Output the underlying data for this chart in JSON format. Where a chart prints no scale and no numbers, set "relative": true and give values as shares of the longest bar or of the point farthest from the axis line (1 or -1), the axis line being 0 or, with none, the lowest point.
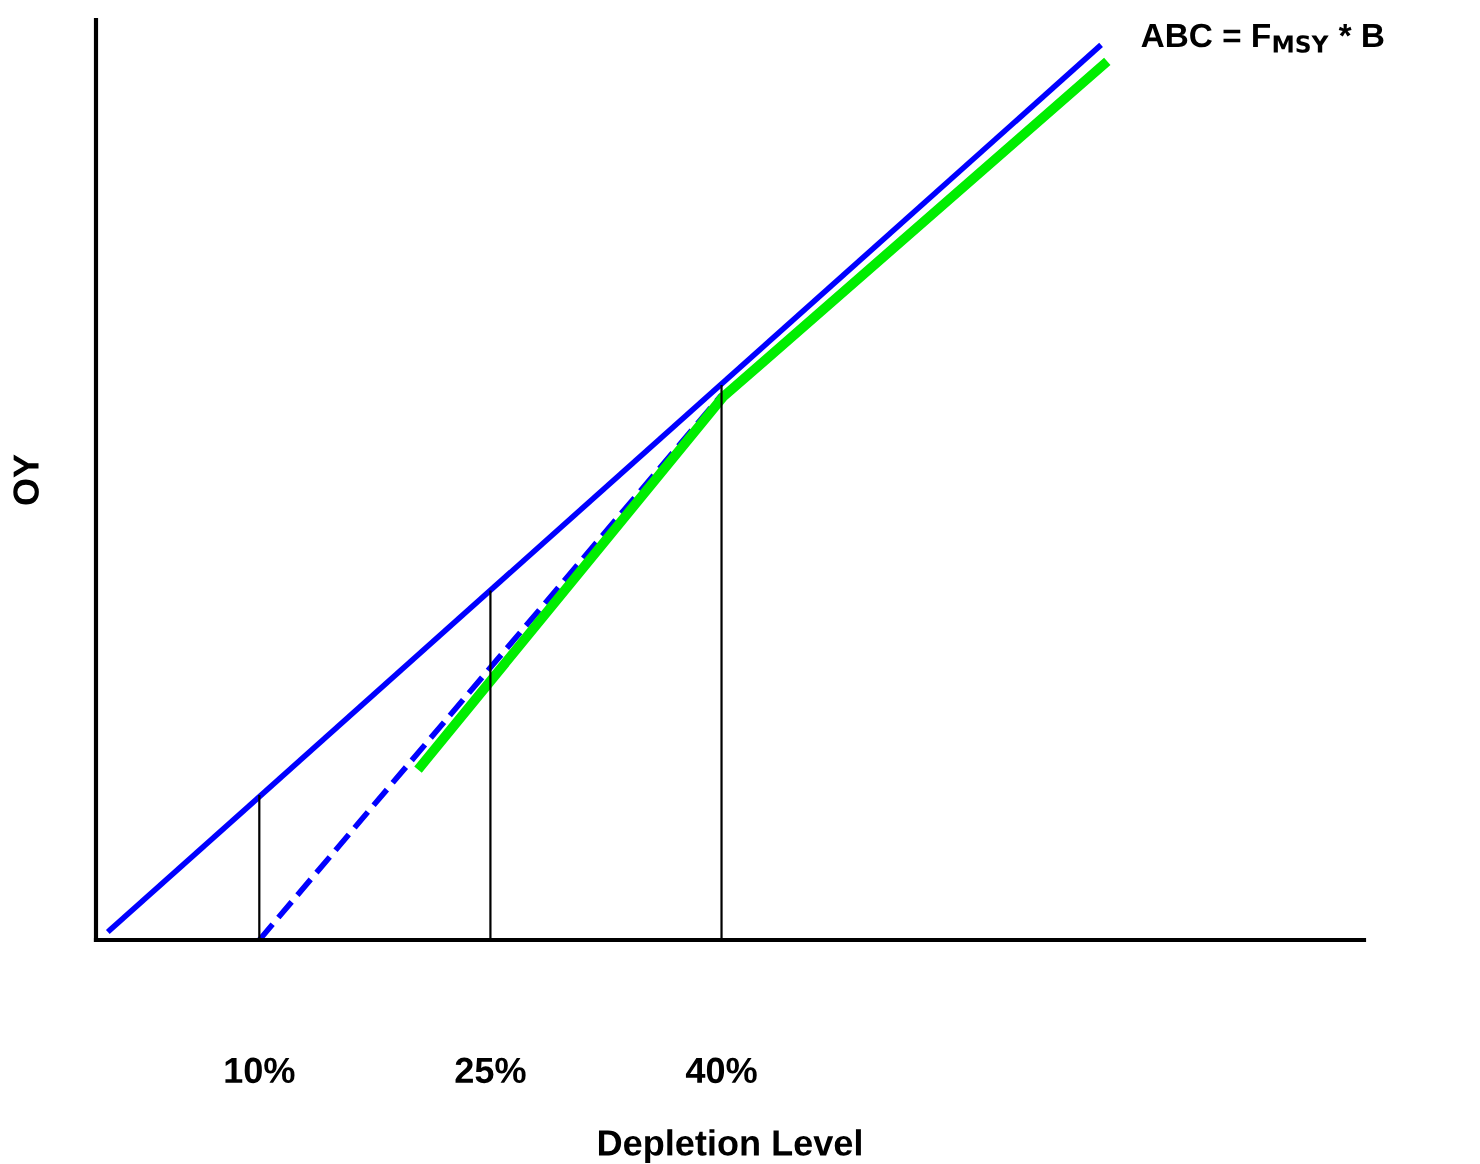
{
  "chart_data": {
    "type": "line",
    "relative": true,
    "xlabel": "Depletion Level",
    "ylabel": "OY",
    "xlim": [
      -0.6,
      81.7
    ],
    "xticks": [
      {
        "value": 10,
        "label": "10%"
      },
      {
        "value": 25,
        "label": "25%"
      },
      {
        "value": 40,
        "label": "40%"
      }
    ],
    "tick_labels": "x",
    "grid": false,
    "marker": "none",
    "series": [
      {
        "color": "#0000ff",
        "x": [
          0.3,
          64.5
        ],
        "values": [
          0.011,
          1
        ],
        "line_style": "solid"
      },
      {
        "color": "#0000ff",
        "x": [
          10,
          40
        ],
        "values": [
          0,
          0.61
        ],
        "line_style": "dashed"
      },
      {
        "color": "#00ee00",
        "x": [
          20.5,
          40.1,
          64.8
        ],
        "values": [
          0.195,
          0.608,
          0.98
        ],
        "line_style": "solid"
      },
      {
        "color": "#000000",
        "x": [
          10,
          10
        ],
        "values": [
          0,
          0.161
        ],
        "line_style": "solid"
      },
      {
        "color": "#000000",
        "x": [
          25,
          25
        ],
        "values": [
          0,
          0.39
        ],
        "line_style": "solid"
      },
      {
        "color": "#000000",
        "x": [
          40,
          40
        ],
        "values": [
          0,
          0.62
        ],
        "line_style": "solid"
      }
    ],
    "annotations": [
      {
        "text": "ABC = F$_{MSY}$ * B",
        "x": 64.5,
        "y": 1
      }
    ]
  }
}
